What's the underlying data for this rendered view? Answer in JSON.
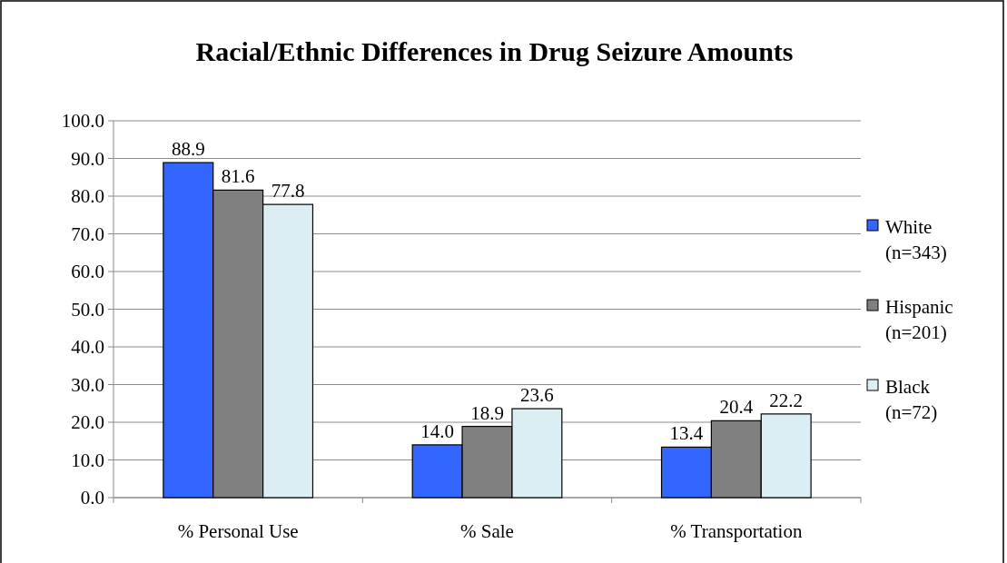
{
  "chart_data": {
    "type": "bar",
    "title": "Racial/Ethnic Differences in Drug Seizure Amounts",
    "categories": [
      "% Personal Use",
      "% Sale",
      "% Transportation"
    ],
    "series": [
      {
        "name": "White (n=343)",
        "color": "#3366ff",
        "values": [
          88.9,
          14.0,
          13.4
        ],
        "value_labels": [
          "88.9",
          "14.0",
          "13.4"
        ]
      },
      {
        "name": "Hispanic (n=201)",
        "color": "#808080",
        "values": [
          81.6,
          18.9,
          20.4
        ],
        "value_labels": [
          "81.6",
          "18.9",
          "20.4"
        ]
      },
      {
        "name": "Black (n=72)",
        "color": "#dbeef4",
        "values": [
          77.8,
          23.6,
          22.2
        ],
        "value_labels": [
          "77.8",
          "23.6",
          "22.2"
        ]
      }
    ],
    "ylim": [
      0,
      100
    ],
    "yticks": [
      {
        "value": 0,
        "label": "0.0"
      },
      {
        "value": 10,
        "label": "10.0"
      },
      {
        "value": 20,
        "label": "20.0"
      },
      {
        "value": 30,
        "label": "30.0"
      },
      {
        "value": 40,
        "label": "40.0"
      },
      {
        "value": 50,
        "label": "50.0"
      },
      {
        "value": 60,
        "label": "60.0"
      },
      {
        "value": 70,
        "label": "70.0"
      },
      {
        "value": 80,
        "label": "80.0"
      },
      {
        "value": 90,
        "label": "90.0"
      },
      {
        "value": 100,
        "label": "100.0"
      }
    ],
    "grid": "y",
    "legend": "right"
  }
}
